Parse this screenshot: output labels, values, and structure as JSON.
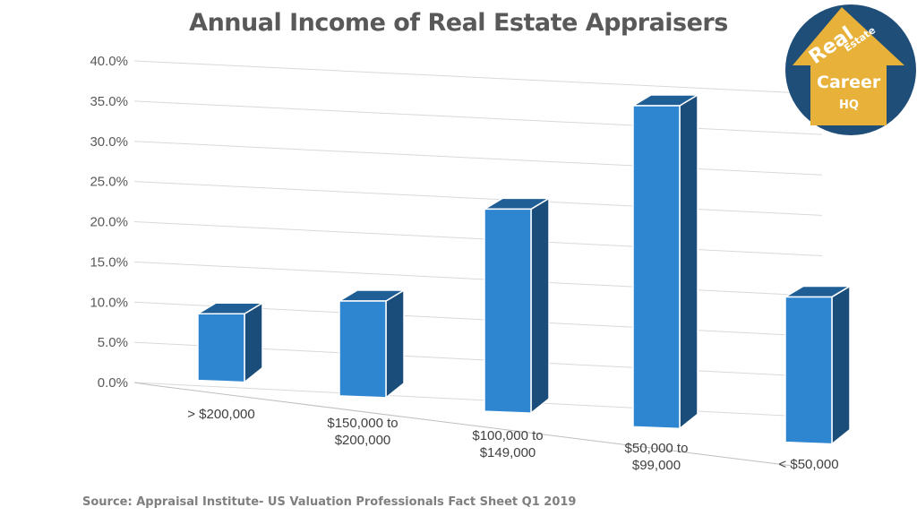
{
  "chart_data": {
    "type": "bar",
    "title": "Annual Income of Real Estate Appraisers",
    "categories": [
      "> $200,000",
      "$150,000 to $200,000",
      "$100,000 to $149,000",
      "$50,000 to $99,000",
      "< $50,000"
    ],
    "category_lines": [
      [
        "> $200,000"
      ],
      [
        "$150,000 to",
        "$200,000"
      ],
      [
        "$100,000 to",
        "$149,000"
      ],
      [
        "$50,000 to",
        "$99,000"
      ],
      [
        "< $50,000"
      ]
    ],
    "values": [
      8.5,
      12.0,
      25.3,
      40.0,
      18.2
    ],
    "ylim": [
      0,
      40
    ],
    "y_ticks": [
      "0.0%",
      "5.0%",
      "10.0%",
      "15.0%",
      "20.0%",
      "25.0%",
      "30.0%",
      "35.0%",
      "40.0%"
    ],
    "xlabel": "",
    "ylabel": "",
    "grid": true,
    "style": "3d-perspective",
    "colors": {
      "bar_front": "#2e86d0",
      "bar_side": "#1b4d7a",
      "bar_top": "#1f5f96",
      "grid": "#d9d9d9",
      "axis": "#bfbfbf"
    }
  },
  "source": "Source: Appraisal Institute- US Valuation Professionals Fact Sheet Q1 2019",
  "logo": {
    "words": [
      "Real",
      "Estate",
      "Career",
      "HQ"
    ],
    "colors": {
      "circle": "#1f4e79",
      "house": "#e8b23a"
    }
  }
}
